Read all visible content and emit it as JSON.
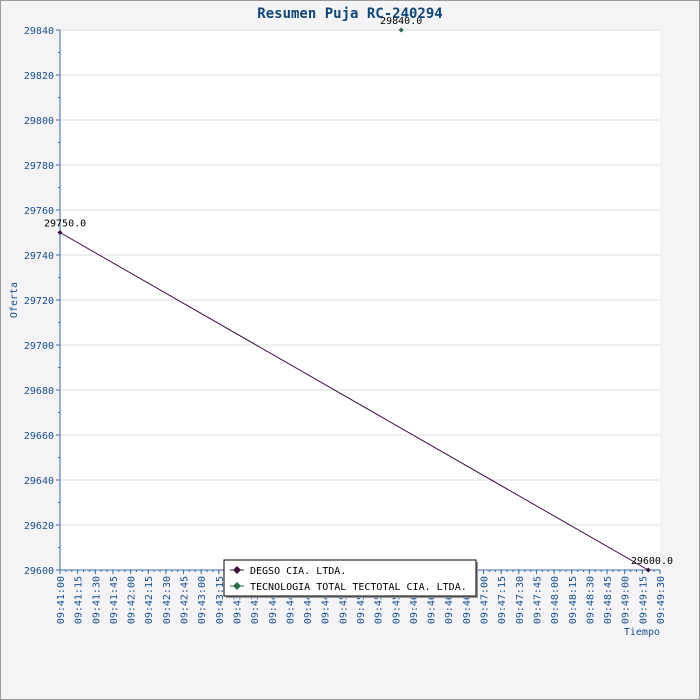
{
  "chart_data": {
    "type": "line",
    "title": "Resumen Puja RC-240294",
    "xlabel": "Tiempo",
    "ylabel": "Oferta",
    "x_ticks": [
      "09:41:00",
      "09:41:15",
      "09:41:30",
      "09:41:45",
      "09:42:00",
      "09:42:15",
      "09:42:30",
      "09:42:45",
      "09:43:00",
      "09:43:15",
      "09:43:30",
      "09:43:45",
      "09:44:00",
      "09:44:15",
      "09:44:30",
      "09:44:45",
      "09:45:00",
      "09:45:15",
      "09:45:30",
      "09:45:45",
      "09:46:00",
      "09:46:15",
      "09:46:30",
      "09:46:45",
      "09:47:00",
      "09:47:15",
      "09:47:30",
      "09:47:45",
      "09:48:00",
      "09:48:15",
      "09:48:30",
      "09:48:45",
      "09:49:00",
      "09:49:15",
      "09:49:30"
    ],
    "xlim": [
      "09:41:00",
      "09:49:30"
    ],
    "ylim": [
      29600,
      29840
    ],
    "y_ticks": [
      29600,
      29620,
      29640,
      29660,
      29680,
      29700,
      29720,
      29740,
      29760,
      29780,
      29800,
      29820,
      29840
    ],
    "grid": true,
    "legend_position": "bottom-center",
    "series": [
      {
        "name": "DEGSO CIA. LTDA.",
        "color": "#3d1040",
        "points": [
          {
            "x": "09:41:00",
            "y": 29750,
            "label": "29750.0"
          },
          {
            "x": "09:49:20",
            "y": 29600,
            "label": "29600.0"
          }
        ]
      },
      {
        "name": "TECNOLOGIA TOTAL TECTOTAL CIA. LTDA.",
        "color": "#2a6a4a",
        "points": [
          {
            "x": "09:45:50",
            "y": 29840,
            "label": "29840.0"
          }
        ]
      }
    ]
  }
}
